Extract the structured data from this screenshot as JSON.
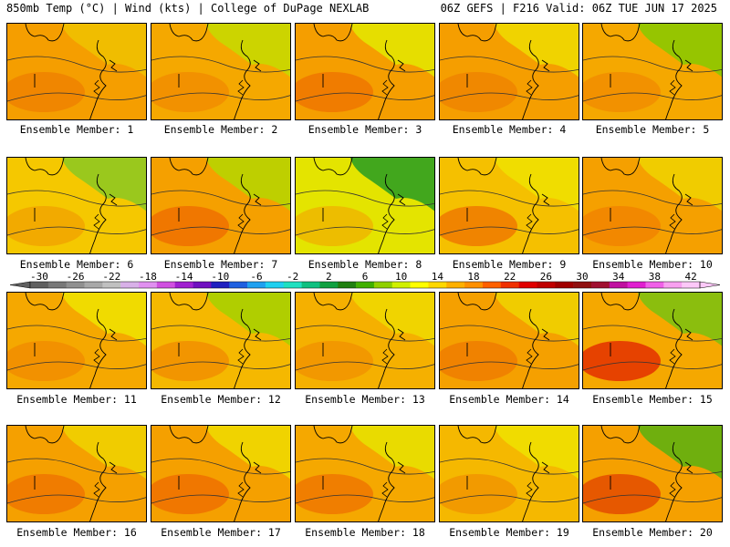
{
  "header": {
    "left": "850mb Temp (°C) | Wind (kts) | College of DuPage NEXLAB",
    "right": "06Z GEFS | F216 Valid: 06Z TUE JUN 17 2025"
  },
  "colorbar": {
    "tick_labels": [
      "-30",
      "-26",
      "-22",
      "-18",
      "-14",
      "-10",
      "-6",
      "-2",
      "2",
      "6",
      "10",
      "14",
      "18",
      "22",
      "26",
      "30",
      "34",
      "38",
      "42"
    ],
    "colors": [
      "#606060",
      "#787878",
      "#909090",
      "#a8a8a8",
      "#c0c0c0",
      "#d8b0e8",
      "#e090f0",
      "#d050e0",
      "#a020d0",
      "#7010c0",
      "#2020c0",
      "#2060e0",
      "#20a0f0",
      "#20d0f0",
      "#20e0c0",
      "#10c080",
      "#10a040",
      "#208010",
      "#40b000",
      "#90d000",
      "#d0f000",
      "#ffff00",
      "#ffd800",
      "#ffb000",
      "#ff9000",
      "#ff6000",
      "#f03000",
      "#e00000",
      "#c00000",
      "#a00000",
      "#901010",
      "#a01030",
      "#c010a0",
      "#e020d0",
      "#f060e8",
      "#f8a0f0",
      "#fcc8f8"
    ]
  },
  "panels": [
    {
      "label": "Ensemble Member: 1",
      "base": "#f59e00",
      "accent": "#f0c000",
      "hot": "#ee7d00"
    },
    {
      "label": "Ensemble Member: 2",
      "base": "#f5a800",
      "accent": "#c8d800",
      "hot": "#f08a00"
    },
    {
      "label": "Ensemble Member: 3",
      "base": "#f59e00",
      "accent": "#e4e400",
      "hot": "#ee7000"
    },
    {
      "label": "Ensemble Member: 4",
      "base": "#f59e00",
      "accent": "#f0d800",
      "hot": "#ee8000"
    },
    {
      "label": "Ensemble Member: 5",
      "base": "#f5a800",
      "accent": "#8cc800",
      "hot": "#f08a00"
    },
    {
      "label": "Ensemble Member: 6",
      "base": "#f5c800",
      "accent": "#90c820",
      "hot": "#f0a000"
    },
    {
      "label": "Ensemble Member: 7",
      "base": "#f5a000",
      "accent": "#b8d400",
      "hot": "#ee6a00"
    },
    {
      "label": "Ensemble Member: 8",
      "base": "#e4e400",
      "accent": "#30a020",
      "hot": "#f0b000"
    },
    {
      "label": "Ensemble Member: 9",
      "base": "#f5c000",
      "accent": "#f0e000",
      "hot": "#ee7000"
    },
    {
      "label": "Ensemble Member: 10",
      "base": "#f5a000",
      "accent": "#f0d000",
      "hot": "#f08000"
    },
    {
      "label": "Ensemble Member: 11",
      "base": "#f5a800",
      "accent": "#f0e000",
      "hot": "#f08a00"
    },
    {
      "label": "Ensemble Member: 12",
      "base": "#f5b800",
      "accent": "#a8d000",
      "hot": "#f08a00"
    },
    {
      "label": "Ensemble Member: 13",
      "base": "#f5b000",
      "accent": "#f0d800",
      "hot": "#f09000"
    },
    {
      "label": "Ensemble Member: 14",
      "base": "#f5a000",
      "accent": "#f0d000",
      "hot": "#ee7800"
    },
    {
      "label": "Ensemble Member: 15",
      "base": "#f5a800",
      "accent": "#80c010",
      "hot": "#e02000"
    },
    {
      "label": "Ensemble Member: 16",
      "base": "#f5a000",
      "accent": "#f0d000",
      "hot": "#ee7000"
    },
    {
      "label": "Ensemble Member: 17",
      "base": "#f5a000",
      "accent": "#f0d800",
      "hot": "#ee6a00"
    },
    {
      "label": "Ensemble Member: 18",
      "base": "#f5a800",
      "accent": "#e8e000",
      "hot": "#ee7000"
    },
    {
      "label": "Ensemble Member: 19",
      "base": "#f5b800",
      "accent": "#f0e000",
      "hot": "#f09000"
    },
    {
      "label": "Ensemble Member: 20",
      "base": "#f5a000",
      "accent": "#60b010",
      "hot": "#e04000"
    }
  ]
}
